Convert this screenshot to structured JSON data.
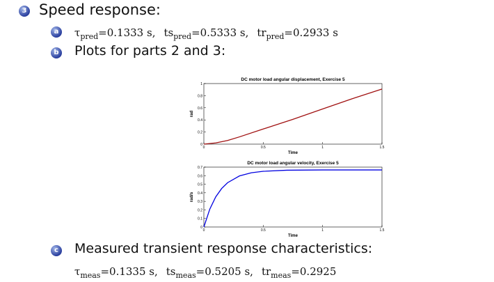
{
  "speed_response": {
    "badge": "3",
    "title": "Speed response:",
    "items": [
      {
        "badge": "a",
        "quantities": [
          {
            "symbol": "τ",
            "sub": "pred",
            "text": "=0.1333 s,"
          },
          {
            "symbol": "ts",
            "sub": "pred",
            "text": "=0.5333 s,"
          },
          {
            "symbol": "tr",
            "sub": "pred",
            "text": "=0.2933 s"
          }
        ]
      },
      {
        "badge": "b",
        "text": "Plots for parts 2 and 3:"
      }
    ]
  },
  "measured": {
    "badge": "c",
    "title": "Measured transient response characteristics:",
    "quantities": [
      {
        "symbol": "τ",
        "sub": "meas",
        "text": "=0.1335 s,"
      },
      {
        "symbol": "ts",
        "sub": "meas",
        "text": "=0.5205 s,"
      },
      {
        "symbol": "tr",
        "sub": "meas",
        "text": "=0.2925"
      }
    ]
  },
  "chart_data": [
    {
      "type": "line",
      "title": "DC motor load angular displacement, Exercise 5",
      "xlabel": "Time",
      "ylabel": "rad",
      "x": [
        0,
        0.1,
        0.2,
        0.3,
        0.5,
        0.75,
        1,
        1.25,
        1.5
      ],
      "series": [
        {
          "color": "#a01010",
          "values": [
            0,
            0.02,
            0.06,
            0.12,
            0.25,
            0.41,
            0.58,
            0.75,
            0.91
          ]
        }
      ],
      "xlim": [
        0,
        1.5
      ],
      "xticks": [
        0,
        0.5,
        1,
        1.5
      ],
      "ylim": [
        0,
        1
      ],
      "yticks": [
        0,
        0.2,
        0.4,
        0.6,
        0.8,
        1
      ]
    },
    {
      "type": "line",
      "title": "DC motor load angular velocity, Exercise 5",
      "xlabel": "Time",
      "ylabel": "rad/s",
      "x": [
        0,
        0.05,
        0.1,
        0.15,
        0.2,
        0.3,
        0.4,
        0.5,
        0.7,
        1,
        1.5
      ],
      "series": [
        {
          "color": "#0000e0",
          "values": [
            0,
            0.209,
            0.352,
            0.45,
            0.518,
            0.597,
            0.634,
            0.651,
            0.664,
            0.667,
            0.667
          ]
        }
      ],
      "xlim": [
        0,
        1.5
      ],
      "xticks": [
        0,
        0.5,
        1,
        1.5
      ],
      "ylim": [
        0,
        0.7
      ],
      "yticks": [
        0,
        0.1,
        0.2,
        0.3,
        0.4,
        0.5,
        0.6,
        0.7
      ]
    }
  ]
}
